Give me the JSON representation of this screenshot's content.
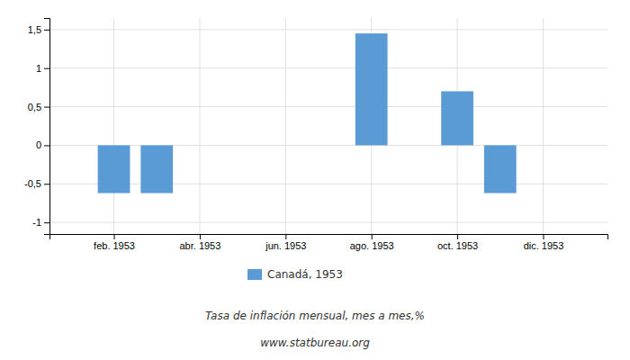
{
  "chart_data": {
    "type": "bar",
    "subtitle": "Tasa de inflación mensual, mes a mes,%",
    "annotations": [
      "www.statbureau.org"
    ],
    "x": [
      2,
      3,
      8,
      10,
      11
    ],
    "series": [
      {
        "name": "Canadá, 1953",
        "color": "#5b9bd5",
        "values": [
          -0.62,
          -0.62,
          1.45,
          0.7,
          -0.62
        ]
      }
    ],
    "xlim": [
      0.5,
      13.5
    ],
    "xticks": [
      {
        "value": 2,
        "label": "feb. 1953"
      },
      {
        "value": 4,
        "label": "abr. 1953"
      },
      {
        "value": 6,
        "label": "jun. 1953"
      },
      {
        "value": 8,
        "label": "ago. 1953"
      },
      {
        "value": 10,
        "label": "oct. 1953"
      },
      {
        "value": 12,
        "label": "dic. 1953"
      }
    ],
    "ylim": [
      -1.15,
      1.65
    ],
    "yticks": [
      -1,
      {
        "value": -0.5,
        "label": "-0,5"
      },
      0,
      {
        "value": 0.5,
        "label": "0,5"
      },
      1,
      {
        "value": 1.5,
        "label": "1,5"
      }
    ],
    "grid": true,
    "legend": "bottom"
  }
}
